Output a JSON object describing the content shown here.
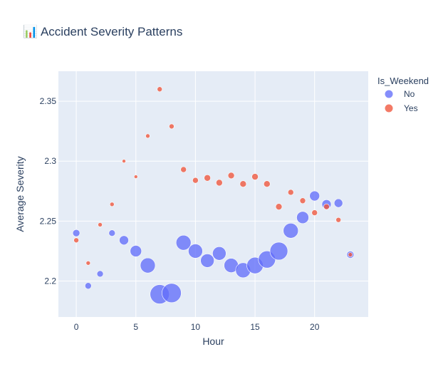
{
  "chart_data": {
    "type": "scatter",
    "title": "📊 Accident Severity Patterns",
    "xlabel": "Hour",
    "ylabel": "Average Severity",
    "xlim": [
      -1.5,
      24.5
    ],
    "ylim": [
      2.17,
      2.375
    ],
    "xticks": [
      0,
      5,
      10,
      15,
      20
    ],
    "yticks": [
      2.2,
      2.25,
      2.3,
      2.35
    ],
    "ytick_labels": [
      "2.2",
      "2.25",
      "2.3",
      "2.35"
    ],
    "grid": true,
    "plot_bg": "#e5ecf6",
    "legend": {
      "title": "Is_Weekend",
      "placement": "right"
    },
    "series": [
      {
        "name": "No",
        "color": "#636efa",
        "points": [
          {
            "x": 0,
            "y": 2.24,
            "size": 5
          },
          {
            "x": 1,
            "y": 2.196,
            "size": 4.5
          },
          {
            "x": 2,
            "y": 2.206,
            "size": 4.5
          },
          {
            "x": 3,
            "y": 2.24,
            "size": 4.5
          },
          {
            "x": 4,
            "y": 2.234,
            "size": 6.5
          },
          {
            "x": 5,
            "y": 2.225,
            "size": 8
          },
          {
            "x": 6,
            "y": 2.213,
            "size": 10.5
          },
          {
            "x": 7,
            "y": 2.189,
            "size": 13.5
          },
          {
            "x": 8,
            "y": 2.19,
            "size": 13.5
          },
          {
            "x": 9,
            "y": 2.232,
            "size": 10.5
          },
          {
            "x": 10,
            "y": 2.225,
            "size": 10
          },
          {
            "x": 11,
            "y": 2.217,
            "size": 9.5
          },
          {
            "x": 12,
            "y": 2.223,
            "size": 9.5
          },
          {
            "x": 13,
            "y": 2.213,
            "size": 10
          },
          {
            "x": 14,
            "y": 2.209,
            "size": 10.5
          },
          {
            "x": 15,
            "y": 2.213,
            "size": 11.5
          },
          {
            "x": 16,
            "y": 2.218,
            "size": 12
          },
          {
            "x": 17,
            "y": 2.225,
            "size": 12.5
          },
          {
            "x": 18,
            "y": 2.242,
            "size": 10.5
          },
          {
            "x": 19,
            "y": 2.253,
            "size": 8.5
          },
          {
            "x": 20,
            "y": 2.271,
            "size": 7
          },
          {
            "x": 21,
            "y": 2.264,
            "size": 6.5
          },
          {
            "x": 22,
            "y": 2.265,
            "size": 6
          },
          {
            "x": 23,
            "y": 2.222,
            "size": 5
          }
        ]
      },
      {
        "name": "Yes",
        "color": "#ef553b",
        "points": [
          {
            "x": 0,
            "y": 2.234,
            "size": 3.5
          },
          {
            "x": 1,
            "y": 2.215,
            "size": 3
          },
          {
            "x": 2,
            "y": 2.247,
            "size": 3
          },
          {
            "x": 3,
            "y": 2.264,
            "size": 3
          },
          {
            "x": 4,
            "y": 2.3,
            "size": 2.5
          },
          {
            "x": 5,
            "y": 2.287,
            "size": 2.5
          },
          {
            "x": 6,
            "y": 2.321,
            "size": 3
          },
          {
            "x": 7,
            "y": 2.36,
            "size": 3.5
          },
          {
            "x": 8,
            "y": 2.329,
            "size": 3.5
          },
          {
            "x": 9,
            "y": 2.293,
            "size": 4
          },
          {
            "x": 10,
            "y": 2.284,
            "size": 4
          },
          {
            "x": 11,
            "y": 2.286,
            "size": 4.5
          },
          {
            "x": 12,
            "y": 2.282,
            "size": 4.5
          },
          {
            "x": 13,
            "y": 2.288,
            "size": 4.5
          },
          {
            "x": 14,
            "y": 2.281,
            "size": 4.5
          },
          {
            "x": 15,
            "y": 2.287,
            "size": 4.5
          },
          {
            "x": 16,
            "y": 2.281,
            "size": 4.5
          },
          {
            "x": 17,
            "y": 2.262,
            "size": 4.5
          },
          {
            "x": 18,
            "y": 2.274,
            "size": 4
          },
          {
            "x": 19,
            "y": 2.267,
            "size": 4
          },
          {
            "x": 20,
            "y": 2.257,
            "size": 4
          },
          {
            "x": 21,
            "y": 2.262,
            "size": 4
          },
          {
            "x": 22,
            "y": 2.251,
            "size": 3.5
          },
          {
            "x": 23,
            "y": 2.222,
            "size": 3
          }
        ]
      }
    ]
  }
}
